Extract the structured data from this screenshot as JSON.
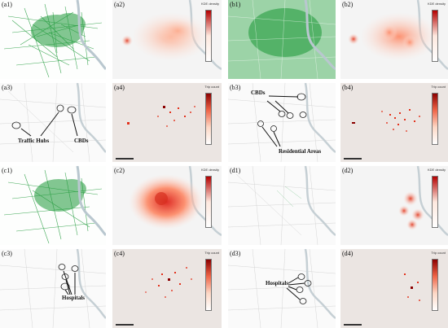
{
  "panels": [
    {
      "id": "a1",
      "label": "(a1)",
      "kind": "green"
    },
    {
      "id": "a2",
      "label": "(a2)",
      "kind": "kde",
      "cbar_title": "KDE density"
    },
    {
      "id": "b1",
      "label": "(b1)",
      "kind": "green"
    },
    {
      "id": "b2",
      "label": "(b2)",
      "kind": "kde",
      "cbar_title": "KDE density"
    },
    {
      "id": "a3",
      "label": "(a3)",
      "kind": "map",
      "annotations": [
        "Traffic Hubs",
        "CBDs"
      ]
    },
    {
      "id": "a4",
      "label": "(a4)",
      "kind": "heat",
      "cbar_title": "Trip count"
    },
    {
      "id": "b3",
      "label": "(b3)",
      "kind": "map",
      "annotations": [
        "CBDs",
        "Residential Areas"
      ]
    },
    {
      "id": "b4",
      "label": "(b4)",
      "kind": "heat",
      "cbar_title": "Trip count"
    },
    {
      "id": "c1",
      "label": "(c1)",
      "kind": "green"
    },
    {
      "id": "c2",
      "label": "(c2)",
      "kind": "kde",
      "cbar_title": "KDE density"
    },
    {
      "id": "d1",
      "label": "(d1)",
      "kind": "map"
    },
    {
      "id": "d2",
      "label": "(d2)",
      "kind": "kde",
      "cbar_title": "KDE density"
    },
    {
      "id": "c3",
      "label": "(c3)",
      "kind": "map",
      "annotations": [
        "Hospitals"
      ]
    },
    {
      "id": "c4",
      "label": "(c4)",
      "kind": "heat",
      "cbar_title": "Trip count"
    },
    {
      "id": "d3",
      "label": "(d3)",
      "kind": "map",
      "annotations": [
        "Hospitals"
      ]
    },
    {
      "id": "d4",
      "label": "(d4)",
      "kind": "heat",
      "cbar_title": "Trip count"
    }
  ],
  "colors": {
    "green": "#1f9a3a",
    "river": "#b9c7cf",
    "kde_dark": "#d7301f",
    "kde_light": "#fde0d6",
    "heat_bg": "#ebe5e2",
    "heat_dot": "#e3321d"
  }
}
